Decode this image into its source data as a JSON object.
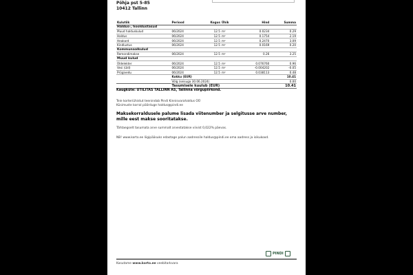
{
  "address": {
    "street": "Põhja pst 5-85",
    "city": "10412 Tallinn"
  },
  "table": {
    "headers": [
      "Kulutiik",
      "Periood",
      "Kogus",
      "Ühik",
      "Hind",
      "Summa"
    ],
    "groups": [
      {
        "name": "Haldus-, hooldustasud",
        "rows": [
          [
            "Muud halduskulud",
            "06/2024",
            "12.5",
            "m²",
            "0.0234",
            "0.29"
          ],
          [
            "Haldus",
            "06/2024",
            "12.5",
            "m²",
            "0.1754",
            "2.19"
          ],
          [
            "Heakord",
            "06/2024",
            "12.5",
            "m²",
            "0.2470",
            "3.09"
          ],
          [
            "Kindlustus",
            "06/2024",
            "12.5",
            "m²",
            "0.0169",
            "0.20"
          ]
        ]
      },
      {
        "name": "Kommunaalkulud",
        "rows": [
          [
            "Remondimakse",
            "06/2024",
            "12.5",
            "m²",
            "0.26",
            "3.25"
          ]
        ]
      },
      {
        "name": "Muud kulud",
        "rows": [
          [
            "Üldelekter",
            "06/2024",
            "12.5",
            "m²",
            "0.076760",
            "0.96"
          ],
          [
            "Vesi (üld)",
            "06/2024",
            "12.5",
            "m²",
            "-0.004202",
            "-0.05"
          ],
          [
            "Prügivedu",
            "06/2024",
            "12.5",
            "m²",
            "0.038113",
            "0.48"
          ]
        ]
      }
    ],
    "total_label": "Kokku (EUR)",
    "total_value": "10.41",
    "debt_label": "Võlg (seisuga 30.06.2024)",
    "debt_value": "0.00",
    "due_label": "Tasumisele kuulub (EUR)",
    "due_value": "10.41"
  },
  "heating": "Kaugküte: UTILITAS TALLINN AS, Tallinna võrgupiirkond.",
  "service1": "Teie korteriühistut teenindab Pindi Kinnisvarahaldus OÜ",
  "service2": "Küsimuste korral pöörduge haldus@pindi.ee",
  "payment_note": "Maksekorraldusele palume lisada viitenumber ja selgitusse arve number, mille eest makse sooritatakse.",
  "late_note": "Tähtaegselt tasumata arve summalt arvestatakse viivist 0,022% päevas.",
  "nb_note": "NB! www.korto.ee liigipääsuks edastage palun aadressile haldus@pindi.ee oma aadress ja isikukood.",
  "footer": {
    "prefix": "Kasutame",
    "site": "www.korto.ee",
    "suffix": "veebitarkvara"
  },
  "logo": {
    "text": "PINDI",
    "color": "#2d5a3d"
  }
}
